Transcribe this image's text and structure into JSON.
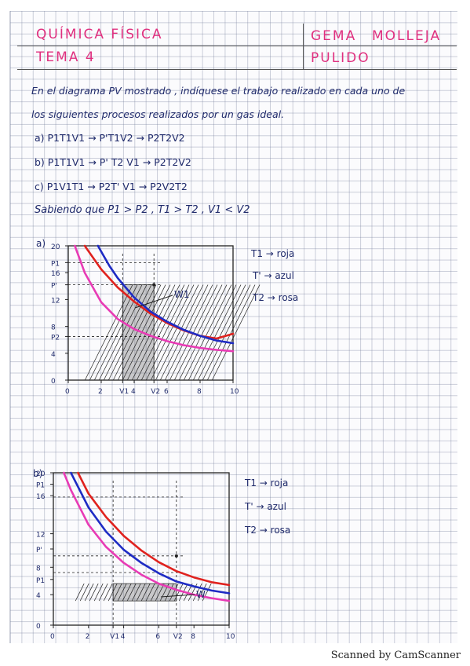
{
  "header": {
    "subject": "QUÍMICA FÍSICA",
    "topic": "TEMA 4",
    "author_first": "GEMA",
    "author_last": "MOLLEJA",
    "author_second_last": "PULIDO"
  },
  "statement": {
    "line1": "En el diagrama PV mostrado , indíquese el trabajo realizado en cada uno de",
    "line2": "los siguientes procesos realizados por un gas ideal.",
    "process_a": "a) P1T1V1 → P'T1V2 → P2T2V2",
    "process_b": "b) P1T1V1 → P' T2 V1 → P2T2V2",
    "process_c": "c) P1V1T1 → P2T' V1 → P2V2T2",
    "condition": "Sabiendo que P1 > P2 ,   T1 > T2 ,   V1 < V2"
  },
  "colors": {
    "ink": "#1f2a6b",
    "pink": "#e0307f",
    "red": "#e0221e",
    "blue": "#1e2bc4",
    "magenta": "#e83bb5"
  },
  "plot_a": {
    "panel_label": "a)",
    "legend": [
      {
        "text": "T1 → roja",
        "color": "#e0221e"
      },
      {
        "text": "T' → azul",
        "color": "#1e2bc4"
      },
      {
        "text": "T2 → rosa",
        "color": "#e83bb5"
      }
    ],
    "work_label": "W1",
    "y_ticks": [
      "20",
      "P1",
      "16",
      "P'",
      "12",
      "8",
      "P2",
      "4",
      "0"
    ],
    "x_ticks": [
      "0",
      "2",
      "V1",
      "4",
      "V2",
      "6",
      "8",
      "10"
    ]
  },
  "plot_b": {
    "panel_label": "b)",
    "legend": [
      {
        "text": "T1 → roja",
        "color": "#e0221e"
      },
      {
        "text": "T' → azul",
        "color": "#1e2bc4"
      },
      {
        "text": "T2 → rosa",
        "color": "#e83bb5"
      }
    ],
    "work_label": "W",
    "y_ticks": [
      "20",
      "P1",
      "16",
      "12",
      "P'",
      "8",
      "P1",
      "4",
      "0"
    ],
    "x_ticks": [
      "0",
      "2",
      "V1",
      "4",
      "6",
      "V2",
      "8",
      "10"
    ]
  },
  "chart_data": [
    {
      "type": "line",
      "xlabel": "",
      "ylabel": "",
      "xlim": [
        0,
        10
      ],
      "ylim": [
        0,
        20
      ],
      "series": [
        {
          "color": "#e0221e",
          "x": [
            1.0,
            2,
            3,
            4,
            5,
            6,
            7,
            8,
            9,
            10
          ],
          "y": [
            20,
            16.5,
            13.8,
            11.7,
            9.9,
            8.5,
            7.4,
            6.6,
            6.2,
            6.9
          ]
        },
        {
          "color": "#1e2bc4",
          "x": [
            1.8,
            2.5,
            3,
            4,
            5,
            6,
            7,
            8,
            9,
            10
          ],
          "y": [
            20,
            17,
            15.2,
            12.3,
            10.2,
            8.7,
            7.5,
            6.6,
            5.9,
            5.5
          ]
        },
        {
          "color": "#e83bb5",
          "x": [
            0.4,
            1,
            2,
            3,
            4,
            5,
            6,
            7,
            8,
            9,
            10
          ],
          "y": [
            20,
            16,
            11.6,
            9.1,
            7.6,
            6.6,
            5.8,
            5.2,
            4.8,
            4.5,
            4.3
          ]
        }
      ]
    },
    {
      "type": "line",
      "xlabel": "",
      "ylabel": "",
      "xlim": [
        0,
        10
      ],
      "ylim": [
        0,
        22
      ],
      "series": [
        {
          "color": "#e0221e",
          "x": [
            1.4,
            2,
            3,
            4,
            5,
            6,
            7,
            8,
            9,
            10
          ],
          "y": [
            22,
            19,
            15.6,
            12.9,
            10.8,
            9.1,
            7.8,
            6.9,
            6.2,
            5.8
          ]
        },
        {
          "color": "#1e2bc4",
          "x": [
            1.0,
            2,
            3,
            4,
            5,
            6,
            7,
            8,
            9,
            10
          ],
          "y": [
            22,
            17,
            13.5,
            10.9,
            9.0,
            7.5,
            6.3,
            5.6,
            5.0,
            4.6
          ]
        },
        {
          "color": "#e83bb5",
          "x": [
            0.6,
            1,
            2,
            3,
            4,
            5,
            6,
            7,
            8,
            9,
            10
          ],
          "y": [
            22,
            19.5,
            14.5,
            11.3,
            9.0,
            7.3,
            6.0,
            5.1,
            4.4,
            3.9,
            3.5
          ]
        }
      ]
    }
  ]
}
